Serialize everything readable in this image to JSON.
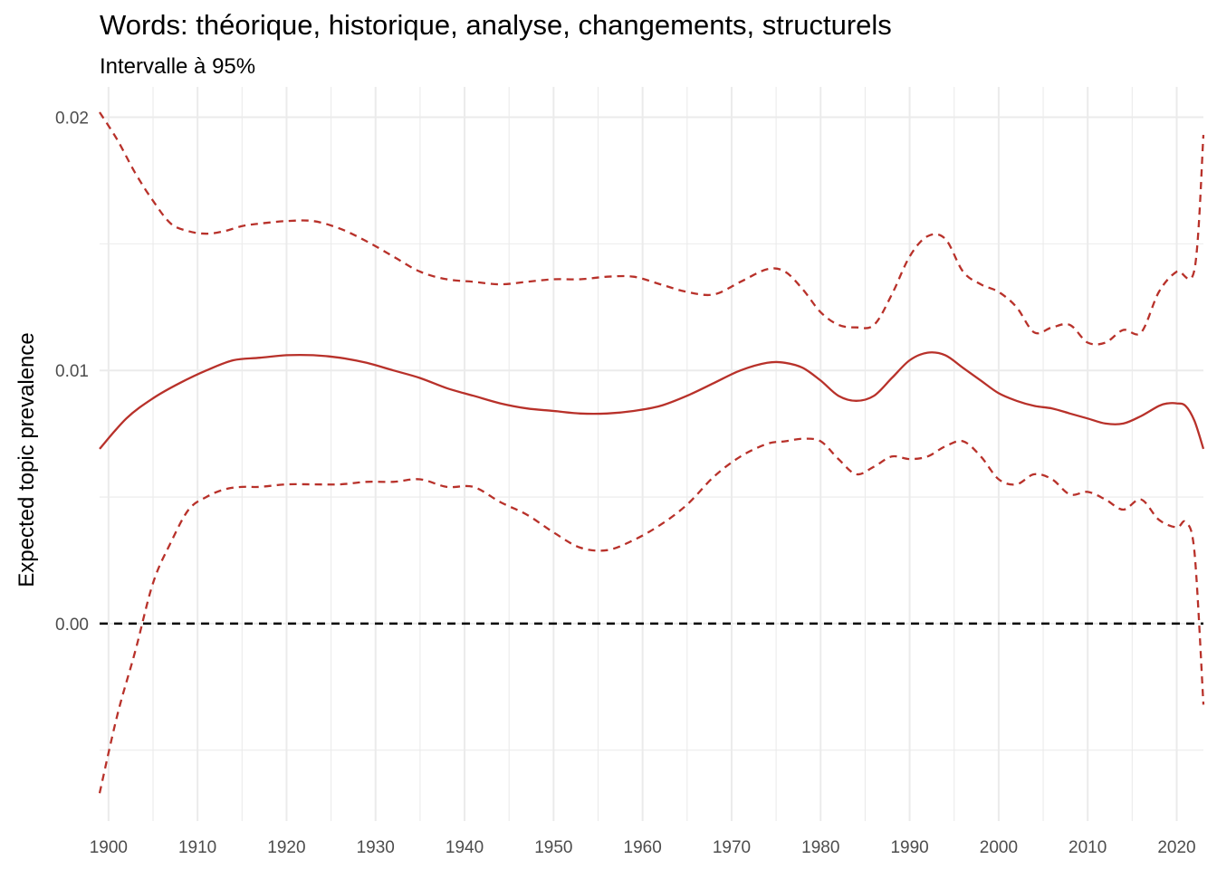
{
  "chart_data": {
    "type": "line",
    "title": "Words: théorique, historique, analyse, changements, structurels",
    "subtitle": "Intervalle à 95%",
    "xlabel": "",
    "ylabel": "Expected topic prevalence",
    "xlim": [
      1899,
      2023
    ],
    "ylim": [
      -0.0078,
      0.0212
    ],
    "x_ticks": [
      1900,
      1910,
      1920,
      1930,
      1940,
      1950,
      1960,
      1970,
      1980,
      1990,
      2000,
      2010,
      2020
    ],
    "y_ticks": [
      0.0,
      0.01,
      0.02
    ],
    "y_tick_labels": [
      "0.00",
      "0.01",
      "0.02"
    ],
    "grid": true,
    "reference_line": {
      "y": 0,
      "style": "dashed",
      "color": "#000000"
    },
    "colors": {
      "series": "#b8312a",
      "grid": "#ebebeb",
      "reference": "#000000"
    },
    "series": [
      {
        "role": "estimate",
        "style": "solid",
        "x": [
          1899,
          1902,
          1905,
          1908,
          1911,
          1914,
          1917,
          1920,
          1923,
          1926,
          1929,
          1932,
          1935,
          1938,
          1941,
          1944,
          1947,
          1950,
          1953,
          1956,
          1959,
          1962,
          1965,
          1968,
          1971,
          1974,
          1976,
          1978,
          1980,
          1982,
          1984,
          1986,
          1988,
          1990,
          1992,
          1994,
          1996,
          1998,
          2000,
          2002,
          2004,
          2006,
          2008,
          2010,
          2012,
          2014,
          2016,
          2018,
          2019,
          2020,
          2021,
          2022,
          2023
        ],
        "y": [
          0.0069,
          0.0081,
          0.0089,
          0.0095,
          0.01,
          0.0104,
          0.0105,
          0.0106,
          0.0106,
          0.0105,
          0.0103,
          0.01,
          0.0097,
          0.0093,
          0.009,
          0.0087,
          0.0085,
          0.0084,
          0.0083,
          0.0083,
          0.0084,
          0.0086,
          0.009,
          0.0095,
          0.01,
          0.0103,
          0.0103,
          0.0101,
          0.0096,
          0.009,
          0.0088,
          0.009,
          0.0097,
          0.0104,
          0.0107,
          0.0106,
          0.0101,
          0.0096,
          0.0091,
          0.0088,
          0.0086,
          0.0085,
          0.0083,
          0.0081,
          0.0079,
          0.0079,
          0.0082,
          0.0086,
          0.0087,
          0.0087,
          0.0086,
          0.008,
          0.0069
        ]
      },
      {
        "role": "upper-95",
        "style": "dashed",
        "x": [
          1899,
          1901,
          1903,
          1905,
          1907,
          1909,
          1911,
          1913,
          1915,
          1917,
          1920,
          1923,
          1926,
          1929,
          1932,
          1935,
          1938,
          1941,
          1944,
          1947,
          1950,
          1953,
          1956,
          1959,
          1962,
          1965,
          1968,
          1971,
          1974,
          1976,
          1978,
          1980,
          1982,
          1984,
          1986,
          1988,
          1990,
          1992,
          1994,
          1996,
          1998,
          2000,
          2002,
          2004,
          2006,
          2008,
          2010,
          2012,
          2014,
          2016,
          2018,
          2020,
          2022,
          2023
        ],
        "y": [
          0.0202,
          0.0191,
          0.0178,
          0.0167,
          0.0158,
          0.0155,
          0.0154,
          0.0155,
          0.0157,
          0.0158,
          0.0159,
          0.0159,
          0.0156,
          0.0151,
          0.0145,
          0.0139,
          0.0136,
          0.0135,
          0.0134,
          0.0135,
          0.0136,
          0.0136,
          0.0137,
          0.0137,
          0.0134,
          0.0131,
          0.013,
          0.0135,
          0.014,
          0.0139,
          0.0132,
          0.0123,
          0.0118,
          0.0117,
          0.0118,
          0.013,
          0.0145,
          0.0153,
          0.0152,
          0.0139,
          0.0134,
          0.0131,
          0.0125,
          0.0115,
          0.0117,
          0.0118,
          0.0111,
          0.0111,
          0.0116,
          0.0115,
          0.0131,
          0.0139,
          0.014,
          0.0193
        ]
      },
      {
        "role": "lower-95",
        "style": "dashed",
        "x": [
          1899,
          1901,
          1903,
          1905,
          1907,
          1909,
          1911,
          1913,
          1915,
          1917,
          1920,
          1923,
          1926,
          1929,
          1932,
          1935,
          1938,
          1941,
          1944,
          1947,
          1950,
          1953,
          1956,
          1959,
          1962,
          1965,
          1968,
          1971,
          1974,
          1976,
          1978,
          1980,
          1982,
          1984,
          1986,
          1988,
          1990,
          1992,
          1994,
          1996,
          1998,
          2000,
          2002,
          2004,
          2006,
          2008,
          2010,
          2012,
          2014,
          2016,
          2018,
          2020,
          2021,
          2022,
          2023
        ],
        "y": [
          -0.0067,
          -0.0036,
          -0.0011,
          0.0016,
          0.0032,
          0.0045,
          0.005,
          0.0053,
          0.0054,
          0.0054,
          0.0055,
          0.0055,
          0.0055,
          0.0056,
          0.0056,
          0.0057,
          0.0054,
          0.0054,
          0.0048,
          0.0043,
          0.0036,
          0.003,
          0.0029,
          0.0033,
          0.0039,
          0.0047,
          0.0058,
          0.0066,
          0.0071,
          0.0072,
          0.0073,
          0.0072,
          0.0065,
          0.0059,
          0.0062,
          0.0066,
          0.0065,
          0.0066,
          0.007,
          0.0072,
          0.0066,
          0.0057,
          0.0055,
          0.0059,
          0.0057,
          0.0051,
          0.0052,
          0.0049,
          0.0045,
          0.0049,
          0.0041,
          0.0038,
          0.004,
          0.0028,
          -0.0032
        ]
      }
    ]
  }
}
